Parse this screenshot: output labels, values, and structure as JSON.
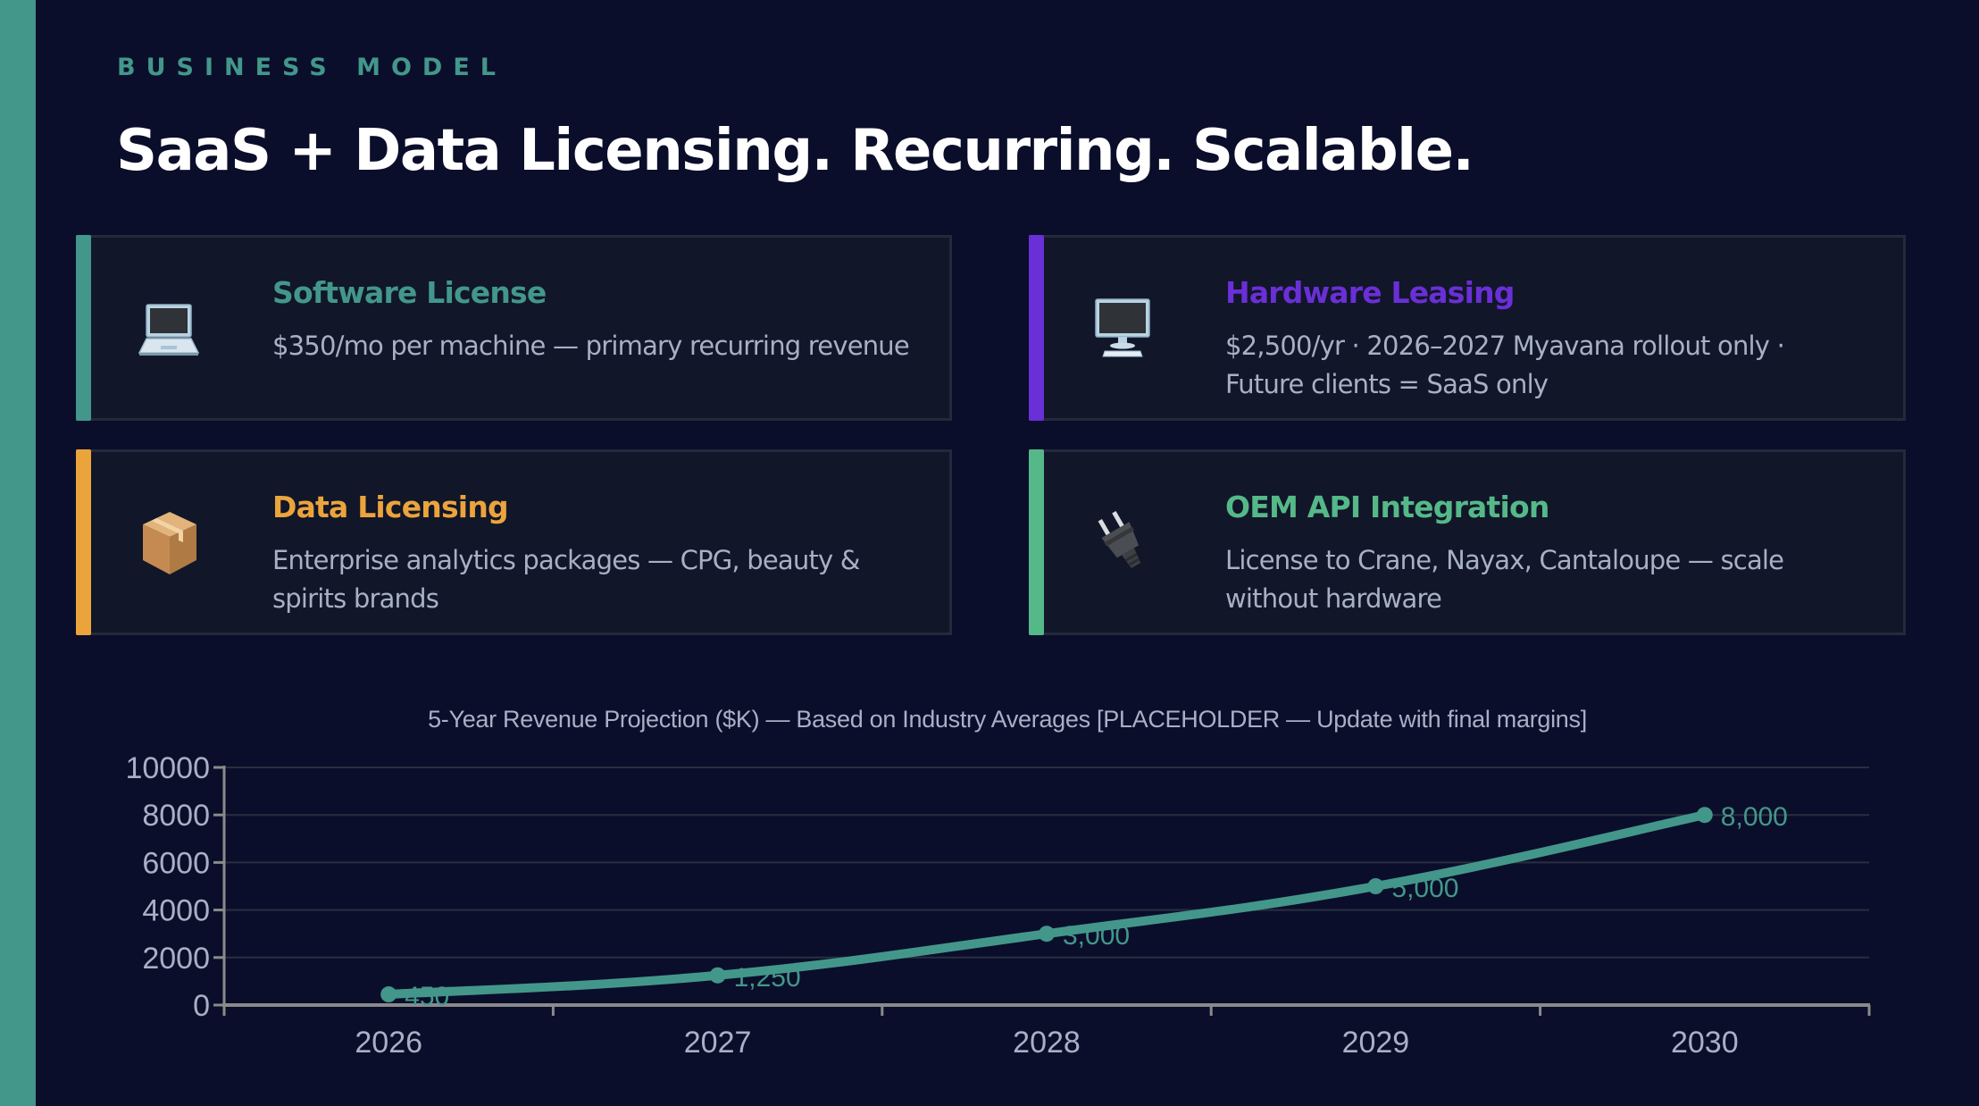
{
  "header": {
    "eyebrow": "BUSINESS MODEL",
    "title": "SaaS + Data Licensing. Recurring. Scalable."
  },
  "colors": {
    "background": "#0b0e2a",
    "brand_teal": "#42968a",
    "card_bg": "#111628",
    "text_muted": "#a7b0c4"
  },
  "cards": [
    {
      "icon": "laptop-icon",
      "title": "Software License",
      "description": "$350/mo per machine — primary recurring revenue",
      "accent": "#42968a"
    },
    {
      "icon": "desktop-computer-icon",
      "title": "Hardware Leasing",
      "description": "$2,500/yr · 2026–2027 Myavana rollout only · Future clients = SaaS only",
      "accent": "#6a2fd6"
    },
    {
      "icon": "package-box-icon",
      "title": "Data Licensing",
      "description": "Enterprise analytics packages — CPG, beauty & spirits brands",
      "accent": "#eba33c"
    },
    {
      "icon": "electric-plug-icon",
      "title": "OEM API Integration",
      "description": "License to Crane, Nayax, Cantaloupe — scale without hardware",
      "accent": "#55b888"
    }
  ],
  "chart_data": {
    "type": "line",
    "title": "5-Year Revenue Projection ($K) — Based on Industry Averages  [PLACEHOLDER — Update with final margins]",
    "xlabel": "",
    "ylabel": "",
    "categories": [
      "2026",
      "2027",
      "2028",
      "2029",
      "2030"
    ],
    "series": [
      {
        "name": "Revenue ($K)",
        "values": [
          450,
          1250,
          3000,
          5000,
          8000
        ],
        "labels": [
          "450",
          "1,250",
          "3,000",
          "5,000",
          "8,000"
        ],
        "color": "#42968a"
      }
    ],
    "ylim": [
      0,
      10000
    ],
    "yticks": [
      0,
      2000,
      4000,
      6000,
      8000,
      10000
    ],
    "grid": true,
    "legend": "none",
    "smooth": true
  }
}
